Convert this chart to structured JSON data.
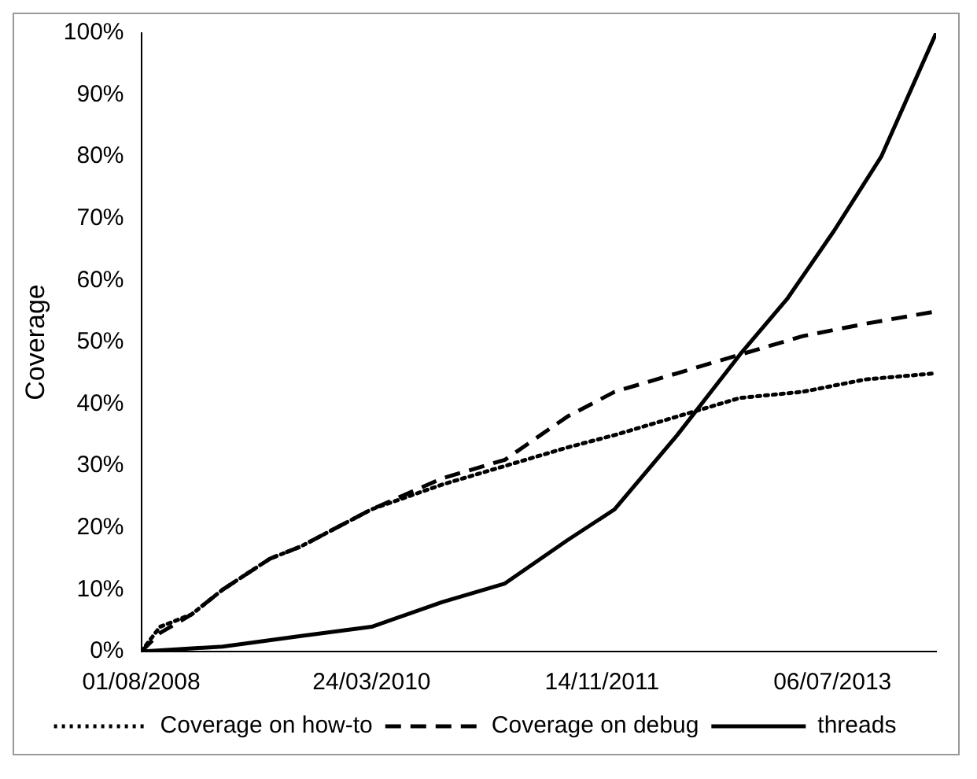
{
  "chart_data": {
    "type": "line",
    "ylabel": "Coverage",
    "xlim": [
      "2008-08-01",
      "2014-04-02"
    ],
    "xticks": [
      {
        "value": "2008-08-01",
        "label": "01/08/2008"
      },
      {
        "value": "2010-03-24",
        "label": "24/03/2010"
      },
      {
        "value": "2011-11-14",
        "label": "14/11/2011"
      },
      {
        "value": "2013-07-06",
        "label": "06/07/2013"
      }
    ],
    "ylim": [
      0,
      100
    ],
    "yticks": [
      {
        "value": 0,
        "label": "0%"
      },
      {
        "value": 10,
        "label": "10%"
      },
      {
        "value": 20,
        "label": "20%"
      },
      {
        "value": 30,
        "label": "30%"
      },
      {
        "value": 40,
        "label": "40%"
      },
      {
        "value": 50,
        "label": "50%"
      },
      {
        "value": 60,
        "label": "60%"
      },
      {
        "value": 70,
        "label": "70%"
      },
      {
        "value": 80,
        "label": "80%"
      },
      {
        "value": 90,
        "label": "90%"
      },
      {
        "value": 100,
        "label": "100%"
      }
    ],
    "grid": false,
    "legend": "bottom",
    "marker": "none",
    "series": [
      {
        "name": "Coverage on how-to",
        "color": "#000000",
        "line_style": "dotted",
        "x": [
          "2008-08-01",
          "2008-09-19",
          "2008-12-10",
          "2009-03-01",
          "2009-07-02",
          "2009-09-21",
          "2010-03-24",
          "2010-09-24",
          "2011-03-06",
          "2011-08-16",
          "2011-12-17",
          "2012-05-28",
          "2012-11-07",
          "2013-04-20",
          "2013-09-30",
          "2014-04-02"
        ],
        "values": [
          0,
          4,
          6,
          10,
          15,
          17,
          23,
          27,
          30,
          33,
          35,
          38,
          41,
          42,
          44,
          45
        ]
      },
      {
        "name": "Coverage on debug",
        "color": "#000000",
        "line_style": "dashed",
        "x": [
          "2008-08-01",
          "2008-09-19",
          "2008-12-10",
          "2009-03-01",
          "2009-07-02",
          "2009-09-21",
          "2010-03-24",
          "2010-09-24",
          "2011-03-06",
          "2011-08-16",
          "2011-12-17",
          "2012-05-28",
          "2012-11-07",
          "2013-04-20",
          "2013-09-30",
          "2014-04-02"
        ],
        "values": [
          0,
          3,
          6,
          10,
          15,
          17,
          23,
          28,
          31,
          38,
          42,
          45,
          48,
          51,
          53,
          55
        ]
      },
      {
        "name": "threads",
        "color": "#000000",
        "line_style": "solid",
        "x": [
          "2008-08-01",
          "2009-03-01",
          "2009-09-21",
          "2010-03-24",
          "2010-09-24",
          "2011-03-06",
          "2011-08-16",
          "2011-12-17",
          "2012-05-28",
          "2012-11-07",
          "2013-03-10",
          "2013-07-10",
          "2013-11-10",
          "2014-04-02"
        ],
        "values": [
          0,
          0.8,
          2.5,
          4,
          8,
          11,
          18,
          23,
          35,
          48,
          57,
          68,
          80,
          100
        ]
      }
    ]
  }
}
